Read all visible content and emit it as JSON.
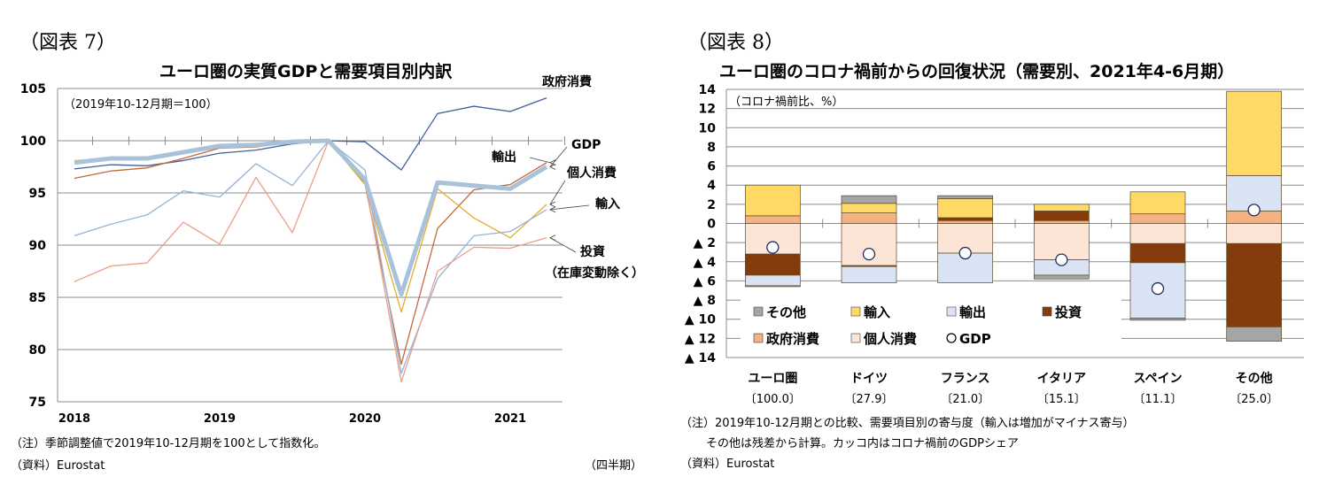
{
  "chart_data": [
    {
      "type": "line",
      "figure_label": "（図表 7）",
      "title": "ユーロ圏の実質GDPと需要項目別内訳",
      "unit_note": "（2019年10-12月期＝100）",
      "xlabel": "（四半期）",
      "ylabel": "",
      "ylim": [
        75,
        105
      ],
      "yticks": [
        "75",
        "80",
        "85",
        "90",
        "95",
        "100",
        "105"
      ],
      "x": [
        "2018Q1",
        "2018Q2",
        "2018Q3",
        "2018Q4",
        "2019Q1",
        "2019Q2",
        "2019Q3",
        "2019Q4",
        "2020Q1",
        "2020Q2",
        "2020Q3",
        "2020Q4",
        "2021Q1",
        "2021Q2"
      ],
      "xtick_labels": [
        "2018",
        "2019",
        "2020",
        "2021"
      ],
      "grid": true,
      "series": [
        {
          "name": "政府消費",
          "color": "#3f5f9a",
          "width": 1.3,
          "values": [
            97.3,
            97.7,
            97.6,
            98.1,
            98.8,
            99.1,
            99.7,
            100.0,
            99.9,
            97.2,
            102.6,
            103.3,
            102.8,
            104.1
          ]
        },
        {
          "name": "輸出",
          "color": "#c0693a",
          "width": 1.3,
          "values": [
            96.4,
            97.1,
            97.4,
            98.3,
            99.3,
            99.4,
            99.9,
            100.0,
            95.9,
            78.6,
            91.6,
            95.3,
            95.8,
            97.9
          ]
        },
        {
          "name": "個人消費",
          "color": "#e0b02a",
          "width": 1.3,
          "values": [
            98.1,
            98.3,
            98.3,
            98.8,
            99.4,
            99.5,
            100.0,
            100.0,
            95.8,
            83.6,
            95.4,
            92.6,
            90.7,
            93.9
          ]
        },
        {
          "name": "輸入",
          "color": "#95b3d7",
          "width": 1.3,
          "values": [
            90.9,
            92.0,
            92.9,
            95.2,
            94.6,
            97.8,
            95.7,
            100.0,
            97.2,
            77.7,
            86.8,
            90.9,
            91.3,
            93.4
          ]
        },
        {
          "name": "投資（在庫変動除く）",
          "color": "#e8a088",
          "width": 1.3,
          "values": [
            86.5,
            88.0,
            88.3,
            92.2,
            90.1,
            96.5,
            91.2,
            100.0,
            96.2,
            76.9,
            87.5,
            89.8,
            89.7,
            90.7
          ]
        },
        {
          "name": "GDP",
          "color": "#a9c2da",
          "width": 5,
          "values": [
            97.9,
            98.3,
            98.3,
            98.9,
            99.5,
            99.6,
            99.9,
            100.0,
            96.3,
            85.3,
            96.0,
            95.7,
            95.4,
            97.5
          ]
        }
      ],
      "annotations": [
        {
          "text": "政府消費",
          "series": "政府消費"
        },
        {
          "text": "GDP",
          "series": "GDP"
        },
        {
          "text": "輸出",
          "series": "輸出"
        },
        {
          "text": "個人消費",
          "series": "個人消費"
        },
        {
          "text": "輸入",
          "series": "輸入"
        },
        {
          "text": "投資",
          "series": "投資（在庫変動除く）"
        },
        {
          "text": "（在庫変動除く）",
          "series": "投資（在庫変動除く）"
        }
      ],
      "notes": [
        "（注）季節調整値で2019年10-12月期を100として指数化。",
        "（資料）Eurostat"
      ]
    },
    {
      "type": "bar",
      "stacked": true,
      "figure_label": "（図表 8）",
      "title": "ユーロ圏のコロナ禍前からの回復状況（需要別、2021年4-6月期）",
      "unit_note": "（コロナ禍前比、%）",
      "ylim": [
        -14,
        14
      ],
      "yticks": [
        "▲ 14",
        "▲ 12",
        "▲ 10",
        "▲ 8",
        "▲ 6",
        "▲ 4",
        "▲ 2",
        "0",
        "2",
        "4",
        "6",
        "8",
        "10",
        "12",
        "14"
      ],
      "ytick_values": [
        -14,
        -12,
        -10,
        -8,
        -6,
        -4,
        -2,
        0,
        2,
        4,
        6,
        8,
        10,
        12,
        14
      ],
      "grid": true,
      "categories": [
        "ユーロ圏",
        "ドイツ",
        "フランス",
        "イタリア",
        "スペイン",
        "その他"
      ],
      "category_shares": [
        "〔100.0〕",
        "〔27.9〕",
        "〔21.0〕",
        "〔15.1〕",
        "〔11.1〕",
        "〔25.0〕"
      ],
      "series": [
        {
          "name": "政府消費",
          "color": "#f4b183",
          "values": [
            0.8,
            1.1,
            0.3,
            0.3,
            1.0,
            1.3
          ]
        },
        {
          "name": "個人消費",
          "color": "#fce4d6",
          "values": [
            -3.2,
            -4.4,
            -3.1,
            -3.8,
            -2.1,
            -2.1
          ]
        },
        {
          "name": "投資",
          "color": "#843c0c",
          "values": [
            -2.2,
            -0.1,
            0.3,
            1.0,
            -2.0,
            -8.7
          ]
        },
        {
          "name": "輸出",
          "color": "#dae3f3",
          "values": [
            -1.1,
            -1.7,
            -3.1,
            -1.6,
            -5.8,
            3.7
          ]
        },
        {
          "name": "輸入",
          "color": "#ffd966",
          "values": [
            3.2,
            1.0,
            2.0,
            0.7,
            2.3,
            8.8
          ]
        },
        {
          "name": "その他",
          "color": "#a5a5a5",
          "values": [
            -0.1,
            0.8,
            0.3,
            -0.4,
            -0.2,
            -1.5
          ]
        }
      ],
      "gdp": {
        "name": "GDP",
        "values": [
          -2.5,
          -3.2,
          -3.1,
          -3.8,
          -6.8,
          1.4
        ]
      },
      "legend": [
        {
          "label": "その他",
          "symbol": "square",
          "color": "#a5a5a5"
        },
        {
          "label": "輸入",
          "symbol": "square",
          "color": "#ffd966"
        },
        {
          "label": "輸出",
          "symbol": "square",
          "color": "#dae3f3"
        },
        {
          "label": "投資",
          "symbol": "square",
          "color": "#843c0c"
        },
        {
          "label": "政府消費",
          "symbol": "square",
          "color": "#f4b183"
        },
        {
          "label": "個人消費",
          "symbol": "square",
          "color": "#fce4d6"
        },
        {
          "label": "GDP",
          "symbol": "circle",
          "color": "#ffffff"
        }
      ],
      "legend_position": "inside-bottom-left",
      "notes": [
        "（注）2019年10-12月期との比較、需要項目別の寄与度（輸入は増加がマイナス寄与）",
        "その他は残差から計算。カッコ内はコロナ禍前のGDPシェア",
        "（資料）Eurostat"
      ]
    }
  ]
}
